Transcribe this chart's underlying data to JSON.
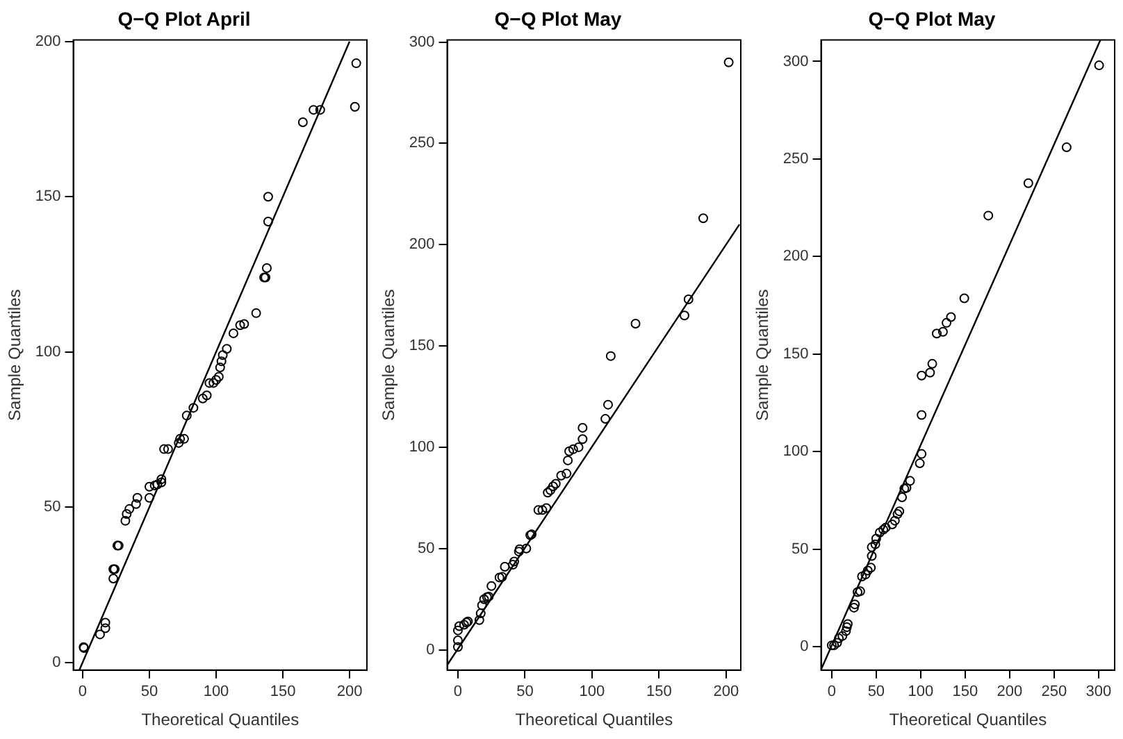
{
  "chart_data": [
    {
      "type": "scatter",
      "title": "Q−Q Plot April",
      "xlabel": "Theoretical Quantiles",
      "ylabel": "Sample Quantiles",
      "xlim": [
        -7,
        213
      ],
      "xticks": [
        0,
        50,
        100,
        150,
        200
      ],
      "ylim": [
        -2.5,
        200.5
      ],
      "yticks": [
        0,
        50,
        100,
        150,
        200
      ],
      "grid": false,
      "legend": false,
      "marker": "circle",
      "series": [
        {
          "type": "scatter",
          "color": "#000000",
          "x": [
            0.7,
            1,
            13,
            17,
            17,
            23,
            23,
            24,
            26,
            27,
            32,
            33,
            35,
            40,
            41,
            50,
            50,
            54,
            56,
            59,
            59,
            61,
            64,
            72,
            73,
            76,
            78,
            83,
            90,
            93,
            95,
            98,
            100,
            102,
            103,
            104,
            105,
            108,
            113,
            118,
            121,
            130,
            136,
            137,
            138,
            139,
            139,
            165,
            173,
            178,
            204,
            205
          ],
          "values": [
            4.9,
            4.6,
            9,
            12.8,
            11,
            27,
            30,
            30,
            37.6,
            37.6,
            45.6,
            47.8,
            49.4,
            51,
            53,
            53,
            56.6,
            57,
            57.3,
            58,
            59,
            68.7,
            68.7,
            70.7,
            72,
            72,
            79.5,
            82,
            85,
            86,
            90,
            90,
            91,
            92,
            95,
            97,
            99,
            101,
            106,
            108.6,
            109,
            112.5,
            124,
            124,
            127,
            142,
            150,
            174,
            178,
            178,
            179,
            193
          ]
        },
        {
          "type": "line",
          "marker": "none",
          "color": "#000000",
          "x": [
            -2.5,
            200
          ],
          "values": [
            -2.5,
            200
          ]
        }
      ]
    },
    {
      "type": "scatter",
      "title": "Q−Q Plot May",
      "xlabel": "Theoretical Quantiles",
      "ylabel": "Sample Quantiles",
      "xlim": [
        -8,
        211
      ],
      "xticks": [
        0,
        50,
        100,
        150,
        200
      ],
      "ylim": [
        -10,
        301
      ],
      "yticks": [
        0,
        50,
        100,
        150,
        200,
        250,
        300
      ],
      "grid": false,
      "legend": false,
      "marker": "circle",
      "series": [
        {
          "type": "scatter",
          "color": "#000000",
          "x": [
            0,
            0,
            0,
            1,
            4.6,
            6.4,
            7.5,
            16,
            17,
            18,
            19.5,
            21.7,
            23,
            25,
            31,
            33,
            35,
            41,
            42,
            45.5,
            46,
            51,
            54,
            55,
            60,
            63,
            66,
            67,
            69,
            71,
            73,
            77,
            81,
            82,
            83,
            86,
            90,
            93,
            93,
            110,
            112,
            114,
            132.5,
            169,
            172,
            183,
            202
          ],
          "values": [
            1.4,
            4.7,
            9.6,
            11.7,
            12.4,
            13.5,
            14,
            14.7,
            18,
            22,
            25,
            26,
            26.3,
            31.5,
            35.7,
            36,
            41,
            42,
            43.6,
            48.5,
            49.7,
            50,
            56.6,
            57,
            69,
            69,
            70,
            77.6,
            78.8,
            80.7,
            82,
            86,
            87,
            93.5,
            98,
            99,
            100,
            104,
            109.6,
            114,
            121,
            145,
            161,
            165,
            173,
            213,
            290
          ]
        },
        {
          "type": "line",
          "marker": "none",
          "color": "#000000",
          "x": [
            -8,
            210
          ],
          "values": [
            -7.5,
            210
          ]
        }
      ]
    },
    {
      "type": "scatter",
      "title": "Q−Q Plot May",
      "xlabel": "Theoretical Quantiles",
      "ylabel": "Sample Quantiles",
      "xlim": [
        -12,
        318
      ],
      "xticks": [
        0,
        50,
        100,
        150,
        200,
        250,
        300
      ],
      "ylim": [
        -12,
        311
      ],
      "yticks": [
        0,
        50,
        100,
        150,
        200,
        250,
        300
      ],
      "grid": false,
      "legend": false,
      "marker": "circle",
      "series": [
        {
          "type": "scatter",
          "color": "#000000",
          "x": [
            0,
            2.6,
            6,
            8,
            12,
            16,
            17,
            18,
            25,
            26,
            29,
            32,
            34,
            38,
            40.5,
            44,
            45,
            45,
            49,
            50,
            54,
            58,
            60.5,
            68,
            71,
            74,
            76,
            79,
            81.6,
            84,
            88,
            99,
            101,
            101,
            101,
            110.5,
            113,
            118,
            125,
            129,
            134,
            149,
            176,
            221,
            264,
            300.5
          ],
          "values": [
            0.7,
            0.7,
            2,
            4.3,
            5.5,
            8,
            10,
            11.6,
            20,
            21.7,
            28,
            28.4,
            36,
            37,
            39,
            40.5,
            46.5,
            51,
            52.5,
            55.4,
            58.5,
            60,
            61,
            62.7,
            64.6,
            68,
            69.4,
            76.6,
            81,
            81.4,
            85,
            94,
            98.8,
            118.8,
            139,
            140.5,
            145,
            160.5,
            161.4,
            166,
            169,
            178.6,
            221,
            237.6,
            256,
            298
          ]
        },
        {
          "type": "line",
          "marker": "none",
          "color": "#000000",
          "x": [
            -12,
            302
          ],
          "values": [
            -11.7,
            311
          ]
        }
      ]
    }
  ]
}
